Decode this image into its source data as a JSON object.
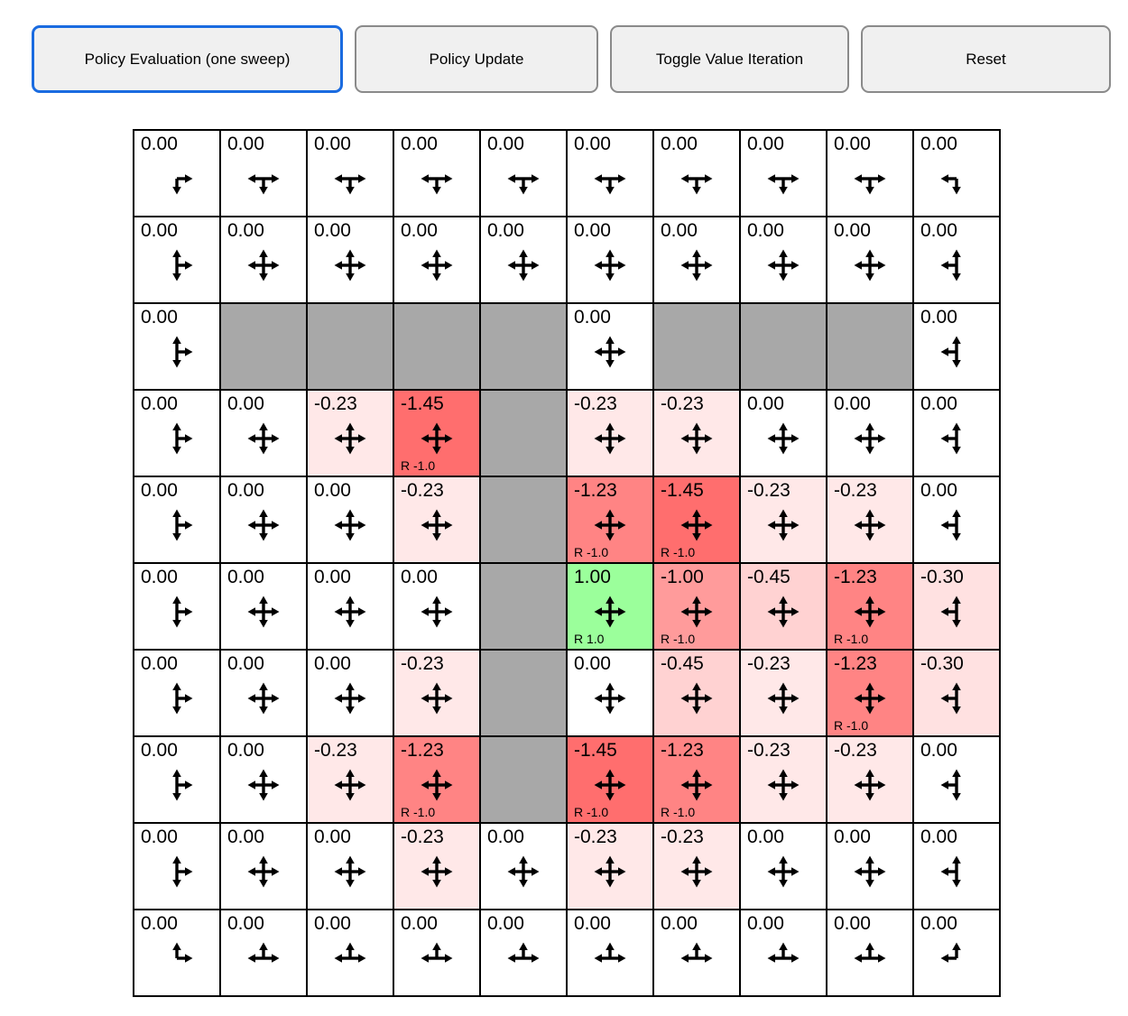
{
  "colors": {
    "accent": "#1a6be0",
    "button_bg": "#f0f0f0",
    "button_border": "#8a8a8a",
    "wall": "#a8a8a8",
    "positive_cell": "#9bff9b",
    "negative_cell_strong": "#ff6e6e"
  },
  "toolbar": {
    "buttons": [
      {
        "label": "Policy Evaluation (one sweep)",
        "active": true
      },
      {
        "label": "Policy Update",
        "active": false
      },
      {
        "label": "Toggle Value Iteration",
        "active": false
      },
      {
        "label": "Reset",
        "active": false
      }
    ]
  },
  "grid": {
    "rows": 10,
    "cols": 10,
    "cells": [
      [
        {
          "v": "0.00",
          "a": "rd"
        },
        {
          "v": "0.00",
          "a": "ldr"
        },
        {
          "v": "0.00",
          "a": "ldr"
        },
        {
          "v": "0.00",
          "a": "ldr"
        },
        {
          "v": "0.00",
          "a": "ldr"
        },
        {
          "v": "0.00",
          "a": "ldr"
        },
        {
          "v": "0.00",
          "a": "ldr"
        },
        {
          "v": "0.00",
          "a": "ldr"
        },
        {
          "v": "0.00",
          "a": "ldr"
        },
        {
          "v": "0.00",
          "a": "ld"
        }
      ],
      [
        {
          "v": "0.00",
          "a": "urd"
        },
        {
          "v": "0.00",
          "a": "uldr"
        },
        {
          "v": "0.00",
          "a": "uldr"
        },
        {
          "v": "0.00",
          "a": "uldr"
        },
        {
          "v": "0.00",
          "a": "uldr"
        },
        {
          "v": "0.00",
          "a": "uldr"
        },
        {
          "v": "0.00",
          "a": "uldr"
        },
        {
          "v": "0.00",
          "a": "uldr"
        },
        {
          "v": "0.00",
          "a": "uldr"
        },
        {
          "v": "0.00",
          "a": "uld"
        }
      ],
      [
        {
          "v": "0.00",
          "a": "urd"
        },
        {
          "w": true
        },
        {
          "w": true
        },
        {
          "w": true
        },
        {
          "w": true
        },
        {
          "v": "0.00",
          "a": "uldr"
        },
        {
          "w": true
        },
        {
          "w": true
        },
        {
          "w": true
        },
        {
          "v": "0.00",
          "a": "uld"
        }
      ],
      [
        {
          "v": "0.00",
          "a": "urd"
        },
        {
          "v": "0.00",
          "a": "uldr"
        },
        {
          "v": "-0.23",
          "a": "uldr",
          "b": "#ffe8e8"
        },
        {
          "v": "-1.45",
          "a": "uldr",
          "b": "#ff6e6e",
          "r": "R -1.0"
        },
        {
          "w": true
        },
        {
          "v": "-0.23",
          "a": "uldr",
          "b": "#ffe8e8"
        },
        {
          "v": "-0.23",
          "a": "uldr",
          "b": "#ffe8e8"
        },
        {
          "v": "0.00",
          "a": "uldr"
        },
        {
          "v": "0.00",
          "a": "uldr"
        },
        {
          "v": "0.00",
          "a": "uld"
        }
      ],
      [
        {
          "v": "0.00",
          "a": "urd"
        },
        {
          "v": "0.00",
          "a": "uldr"
        },
        {
          "v": "0.00",
          "a": "uldr"
        },
        {
          "v": "-0.23",
          "a": "uldr",
          "b": "#ffe8e8"
        },
        {
          "w": true
        },
        {
          "v": "-1.23",
          "a": "uldr",
          "b": "#ff8484",
          "r": "R -1.0"
        },
        {
          "v": "-1.45",
          "a": "uldr",
          "b": "#ff6e6e",
          "r": "R -1.0"
        },
        {
          "v": "-0.23",
          "a": "uldr",
          "b": "#ffe8e8"
        },
        {
          "v": "-0.23",
          "a": "uldr",
          "b": "#ffe8e8"
        },
        {
          "v": "0.00",
          "a": "uld"
        }
      ],
      [
        {
          "v": "0.00",
          "a": "urd"
        },
        {
          "v": "0.00",
          "a": "uldr"
        },
        {
          "v": "0.00",
          "a": "uldr"
        },
        {
          "v": "0.00",
          "a": "uldr"
        },
        {
          "w": true
        },
        {
          "v": "1.00",
          "a": "uldr",
          "b": "#9bff9b",
          "r": "R 1.0"
        },
        {
          "v": "-1.00",
          "a": "uldr",
          "b": "#ff9b9b",
          "r": "R -1.0"
        },
        {
          "v": "-0.45",
          "a": "uldr",
          "b": "#ffd2d2"
        },
        {
          "v": "-1.23",
          "a": "uldr",
          "b": "#ff8484",
          "r": "R -1.0"
        },
        {
          "v": "-0.30",
          "a": "uld",
          "b": "#ffe1e1"
        }
      ],
      [
        {
          "v": "0.00",
          "a": "urd"
        },
        {
          "v": "0.00",
          "a": "uldr"
        },
        {
          "v": "0.00",
          "a": "uldr"
        },
        {
          "v": "-0.23",
          "a": "uldr",
          "b": "#ffe8e8"
        },
        {
          "w": true
        },
        {
          "v": "0.00",
          "a": "uldr"
        },
        {
          "v": "-0.45",
          "a": "uldr",
          "b": "#ffd2d2"
        },
        {
          "v": "-0.23",
          "a": "uldr",
          "b": "#ffe8e8"
        },
        {
          "v": "-1.23",
          "a": "uldr",
          "b": "#ff8484",
          "r": "R -1.0"
        },
        {
          "v": "-0.30",
          "a": "uld",
          "b": "#ffe1e1"
        }
      ],
      [
        {
          "v": "0.00",
          "a": "urd"
        },
        {
          "v": "0.00",
          "a": "uldr"
        },
        {
          "v": "-0.23",
          "a": "uldr",
          "b": "#ffe8e8"
        },
        {
          "v": "-1.23",
          "a": "uldr",
          "b": "#ff8484",
          "r": "R -1.0"
        },
        {
          "w": true
        },
        {
          "v": "-1.45",
          "a": "uldr",
          "b": "#ff6e6e",
          "r": "R -1.0"
        },
        {
          "v": "-1.23",
          "a": "uldr",
          "b": "#ff8484",
          "r": "R -1.0"
        },
        {
          "v": "-0.23",
          "a": "uldr",
          "b": "#ffe8e8"
        },
        {
          "v": "-0.23",
          "a": "uldr",
          "b": "#ffe8e8"
        },
        {
          "v": "0.00",
          "a": "uld"
        }
      ],
      [
        {
          "v": "0.00",
          "a": "urd"
        },
        {
          "v": "0.00",
          "a": "uldr"
        },
        {
          "v": "0.00",
          "a": "uldr"
        },
        {
          "v": "-0.23",
          "a": "uldr",
          "b": "#ffe8e8"
        },
        {
          "v": "0.00",
          "a": "uldr"
        },
        {
          "v": "-0.23",
          "a": "uldr",
          "b": "#ffe8e8"
        },
        {
          "v": "-0.23",
          "a": "uldr",
          "b": "#ffe8e8"
        },
        {
          "v": "0.00",
          "a": "uldr"
        },
        {
          "v": "0.00",
          "a": "uldr"
        },
        {
          "v": "0.00",
          "a": "uld"
        }
      ],
      [
        {
          "v": "0.00",
          "a": "ur"
        },
        {
          "v": "0.00",
          "a": "lur"
        },
        {
          "v": "0.00",
          "a": "lur"
        },
        {
          "v": "0.00",
          "a": "lur"
        },
        {
          "v": "0.00",
          "a": "lur"
        },
        {
          "v": "0.00",
          "a": "lur"
        },
        {
          "v": "0.00",
          "a": "lur"
        },
        {
          "v": "0.00",
          "a": "lur"
        },
        {
          "v": "0.00",
          "a": "lur"
        },
        {
          "v": "0.00",
          "a": "ul"
        }
      ]
    ]
  }
}
